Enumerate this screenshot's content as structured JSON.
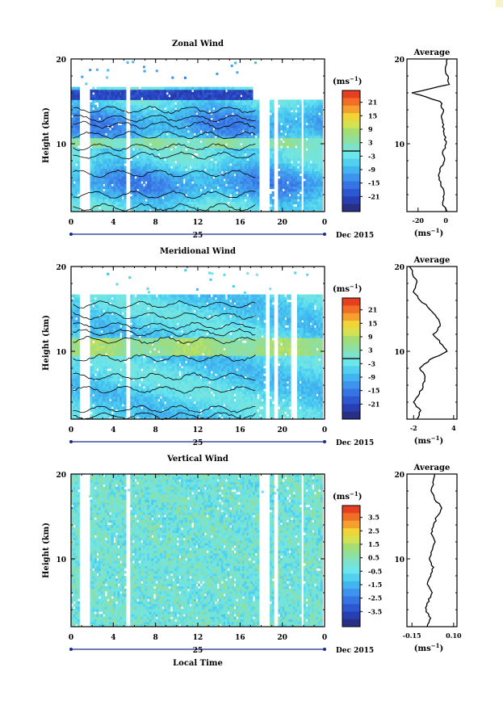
{
  "chart_data": [
    {
      "type": "heatmap",
      "title": "Zonal Wind",
      "ylabel": "Height (km)",
      "xlabel": "",
      "x_ticks": [
        "0",
        "4",
        "8",
        "12",
        "16",
        "20",
        "0"
      ],
      "y_ticks": [
        "20",
        "10"
      ],
      "xlim": [
        0,
        24
      ],
      "ylim": [
        2,
        20
      ],
      "date_label": "25",
      "month_label": "Dec 2015",
      "colorbar": {
        "unit": "(ms",
        "unit_exp": "−1",
        "unit_close": ")",
        "ticks": [
          "21",
          "15",
          "9",
          "3",
          "-3",
          "-9",
          "-15",
          "-21"
        ],
        "range": [
          -24,
          24
        ],
        "contour_at": 0
      },
      "data_gaps_hours": [
        [
          0.8,
          1.6
        ],
        [
          5.2,
          5.6
        ],
        [
          17.6,
          18.6
        ],
        [
          19.0,
          19.4
        ],
        [
          21.6,
          21.8
        ]
      ],
      "average_profile": {
        "title": "Average",
        "x_ticks": [
          "-20",
          "0"
        ],
        "xlim": [
          -28,
          8
        ],
        "xlabel": "(ms",
        "xlabel_exp": "−1",
        "xlabel_close": ")",
        "heights": [
          2,
          3,
          4,
          5,
          6,
          7,
          8,
          9,
          10,
          11,
          12,
          13,
          14,
          15,
          16,
          17,
          18,
          19,
          20
        ],
        "values": [
          0,
          -2,
          -1,
          -3,
          -5,
          -4,
          -1,
          -2,
          0,
          -1,
          -2,
          -3,
          -2,
          -4,
          -24,
          2,
          1,
          -1,
          1
        ]
      }
    },
    {
      "type": "heatmap",
      "title": "Meridional Wind",
      "ylabel": "Height (km)",
      "xlabel": "",
      "x_ticks": [
        "0",
        "4",
        "8",
        "12",
        "16",
        "20",
        "0"
      ],
      "y_ticks": [
        "20",
        "10"
      ],
      "xlim": [
        0,
        24
      ],
      "ylim": [
        2,
        20
      ],
      "date_label": "25",
      "month_label": "Dec 2015",
      "colorbar": {
        "unit": "(ms",
        "unit_exp": "−1",
        "unit_close": ")",
        "ticks": [
          "21",
          "15",
          "9",
          "3",
          "-3",
          "-9",
          "-15",
          "-21"
        ],
        "range": [
          -24,
          24
        ],
        "contour_at": 0
      },
      "data_gaps_hours": [
        [
          0.8,
          1.6
        ],
        [
          5.2,
          5.6
        ],
        [
          18.2,
          18.6
        ],
        [
          19.0,
          19.4
        ],
        [
          20.6,
          21.2
        ]
      ],
      "average_profile": {
        "title": "Average",
        "x_ticks": [
          "-2",
          "4"
        ],
        "xlim": [
          -3,
          4.5
        ],
        "xlabel": "(ms",
        "xlabel_exp": "−1",
        "xlabel_close": ")",
        "heights": [
          2,
          3,
          4,
          5,
          6,
          7,
          8,
          9,
          10,
          11,
          12,
          13,
          14,
          15,
          16,
          17,
          18,
          19,
          20
        ],
        "values": [
          -1.5,
          -1,
          -2,
          -1.2,
          -0.5,
          -0.2,
          -1,
          0.5,
          3,
          2,
          1,
          2,
          1.5,
          0.5,
          -1,
          -2,
          -1.5,
          -2,
          -2.5
        ]
      }
    },
    {
      "type": "heatmap",
      "title": "Vertical Wind",
      "ylabel": "Height (km)",
      "xlabel": "Local Time",
      "x_ticks": [
        "0",
        "4",
        "8",
        "12",
        "16",
        "20",
        "0"
      ],
      "y_ticks": [
        "20",
        "10"
      ],
      "xlim": [
        0,
        24
      ],
      "ylim": [
        2,
        20
      ],
      "date_label": "25",
      "month_label": "Dec 2015",
      "colorbar": {
        "unit": "(ms",
        "unit_exp": "−1",
        "unit_close": ")",
        "ticks": [
          "3.5",
          "2.5",
          "1.5",
          "0.5",
          "-0.5",
          "-1.5",
          "-2.5",
          "-3.5"
        ],
        "range": [
          -4,
          4
        ],
        "contour_at": null
      },
      "data_gaps_hours": [
        [
          0.8,
          1.6
        ],
        [
          5.2,
          5.6
        ],
        [
          17.6,
          18.6
        ],
        [
          19.0,
          19.4
        ],
        [
          21.6,
          21.8
        ]
      ],
      "average_profile": {
        "title": "Average",
        "x_ticks": [
          "-0.15",
          "0.10"
        ],
        "xlim": [
          -0.18,
          0.12
        ],
        "xlabel": "(ms",
        "xlabel_exp": "−1",
        "xlabel_close": ")",
        "heights": [
          2,
          3,
          4,
          5,
          6,
          7,
          8,
          9,
          10,
          11,
          12,
          13,
          14,
          15,
          16,
          17,
          18,
          19,
          20
        ],
        "values": [
          -0.06,
          -0.04,
          -0.07,
          -0.05,
          -0.03,
          -0.06,
          -0.04,
          -0.02,
          -0.05,
          -0.03,
          -0.01,
          -0.03,
          -0.02,
          0.0,
          0.03,
          -0.01,
          -0.03,
          -0.02,
          -0.01
        ]
      }
    }
  ]
}
